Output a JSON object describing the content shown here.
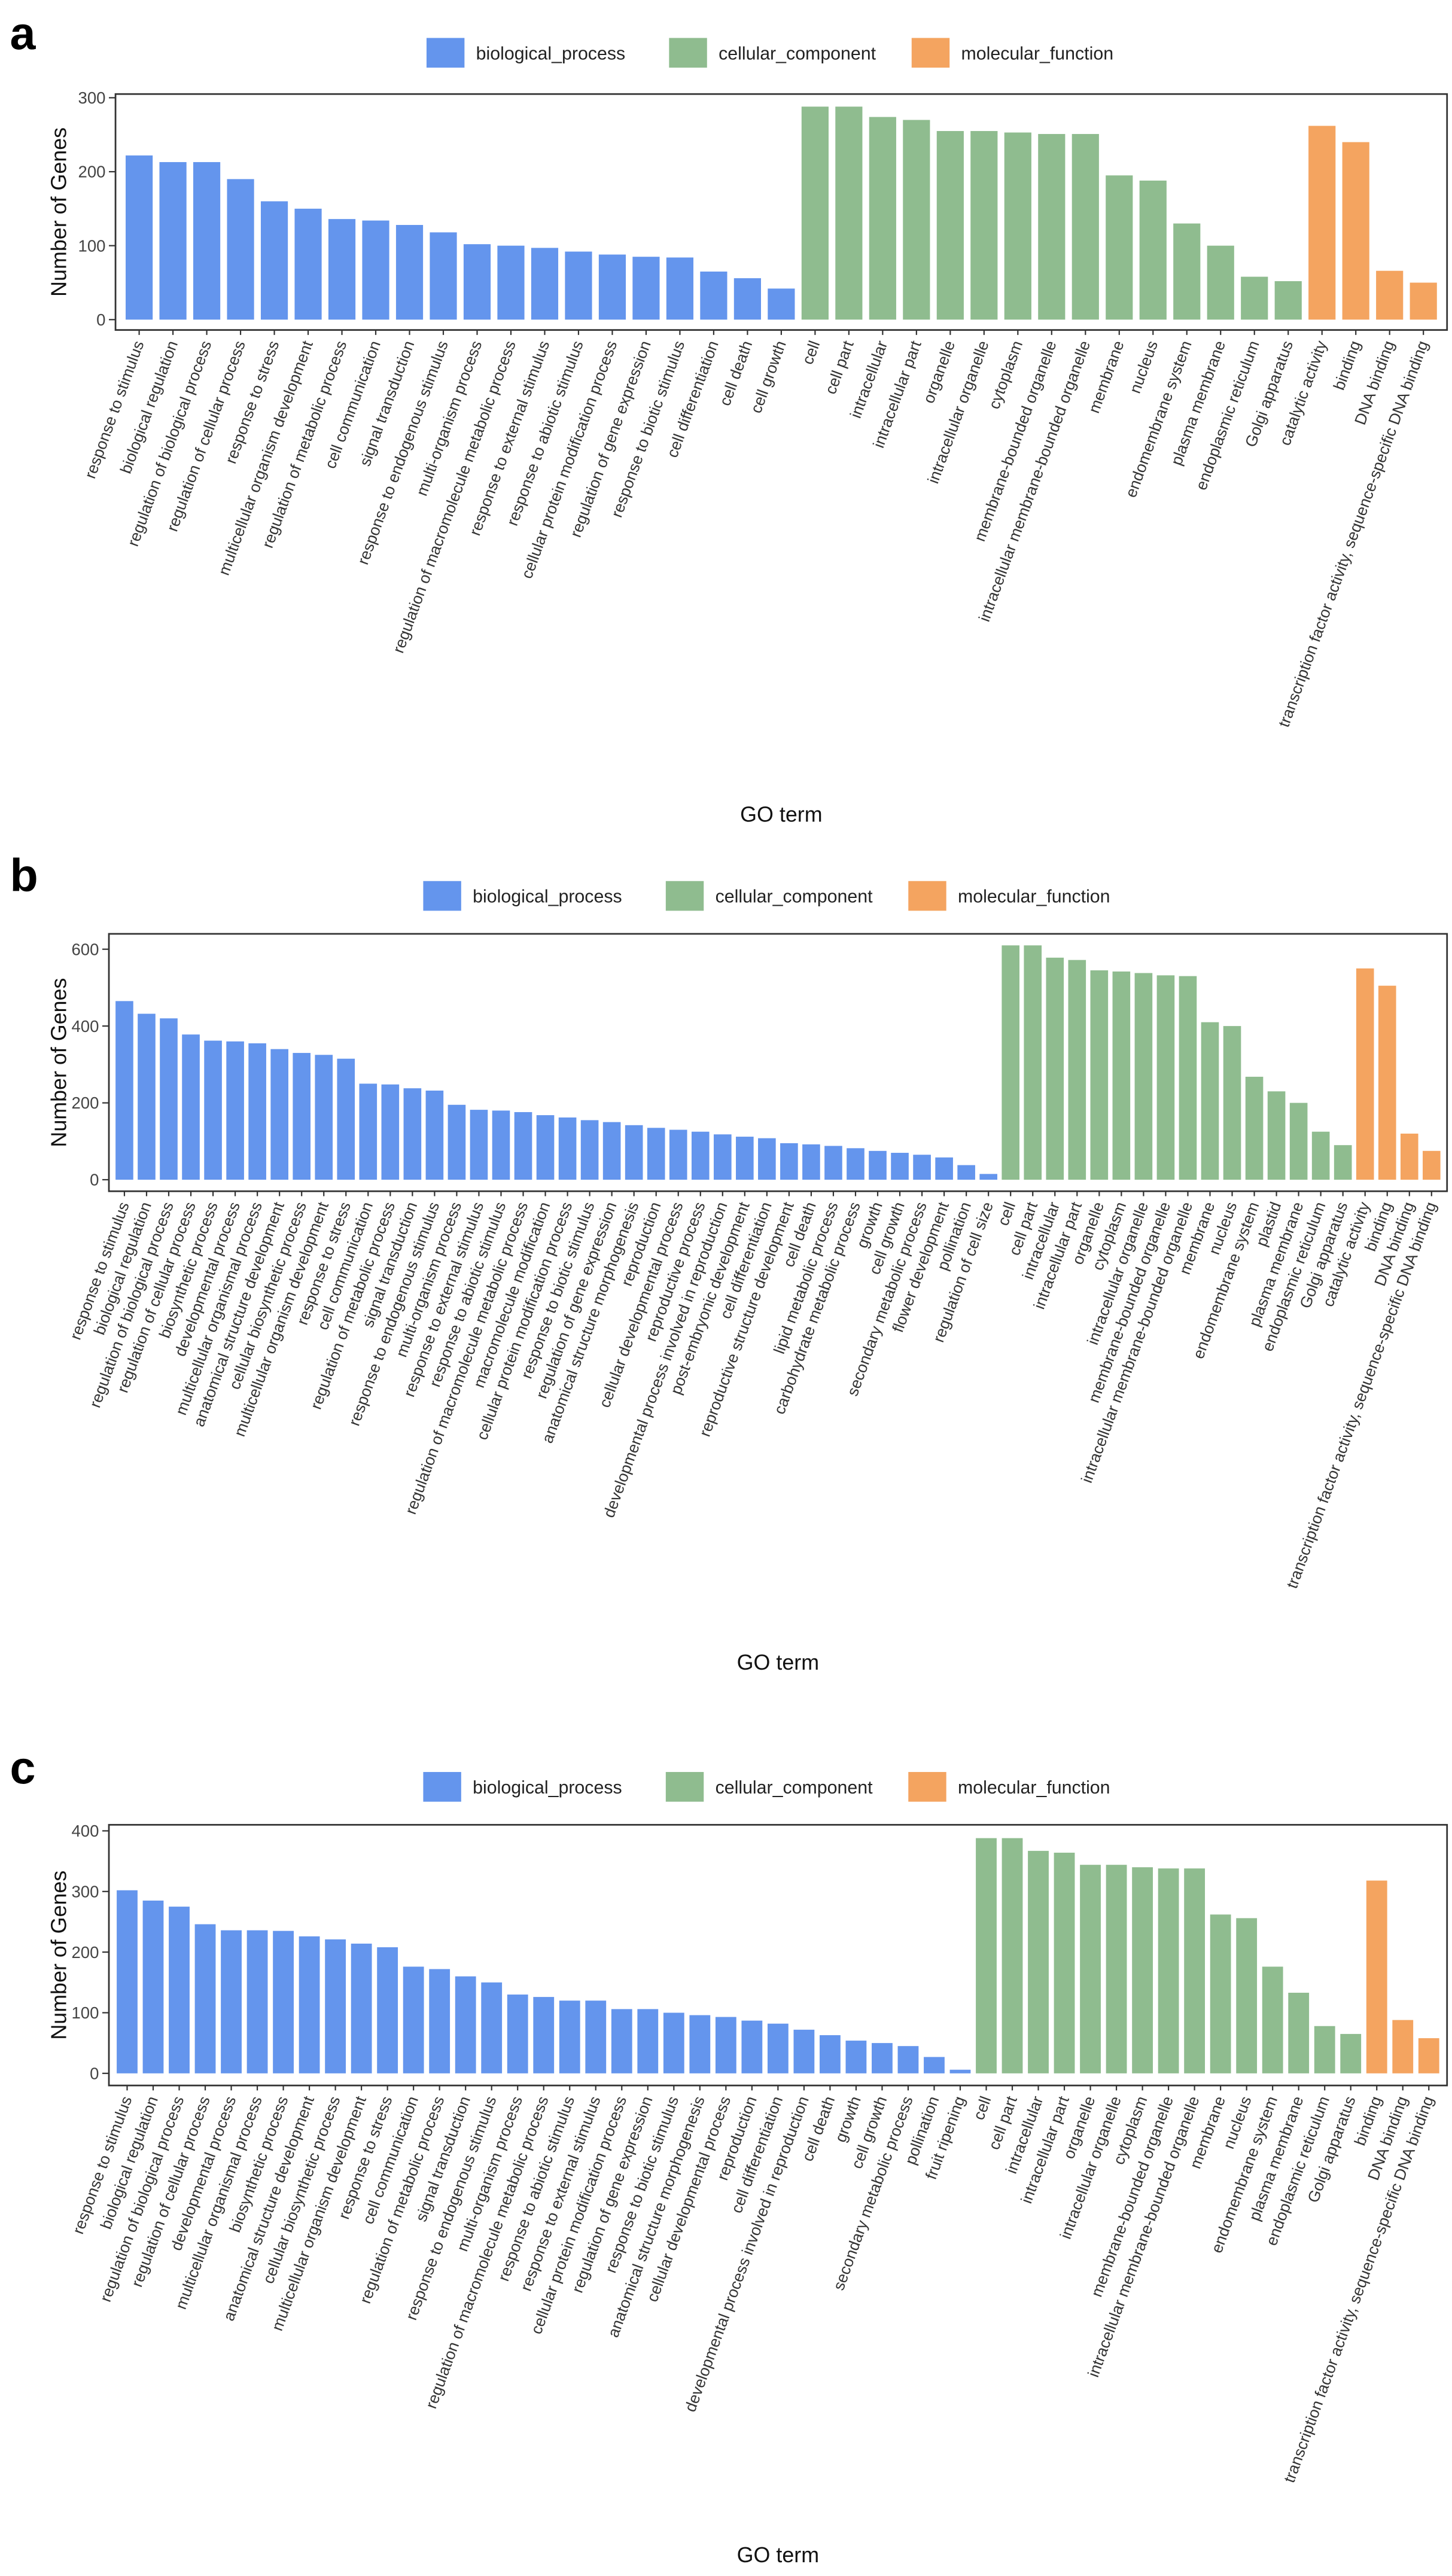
{
  "chart_data": [
    {
      "type": "bar",
      "panel_label": "a",
      "x_label": "GO term",
      "y_label": "Number of Genes",
      "ylim": [
        -14,
        305
      ],
      "yticks": [
        0,
        100,
        200,
        300
      ],
      "series": [
        {
          "name": "biological_process",
          "color": "#6495ed",
          "categories": [
            "response to stimulus",
            "biological regulation",
            "regulation of biological process",
            "regulation of cellular process",
            "response to stress",
            "multicellular organism development",
            "regulation of metabolic process",
            "cell communication",
            "signal transduction",
            "response to endogenous stimulus",
            "multi-organism process",
            "regulation of macromolecule metabolic process",
            "response to external stimulus",
            "response to abiotic stimulus",
            "cellular protein modification process",
            "regulation of gene expression",
            "response to biotic stimulus",
            "cell differentiation",
            "cell death",
            "cell growth"
          ],
          "values": [
            222,
            213,
            213,
            190,
            160,
            150,
            136,
            134,
            128,
            118,
            102,
            100,
            97,
            92,
            88,
            85,
            84,
            65,
            56,
            42
          ]
        },
        {
          "name": "cellular_component",
          "color": "#8fbc8f",
          "categories": [
            "cell",
            "cell part",
            "intracellular",
            "intracellular part",
            "organelle",
            "intracellular organelle",
            "cytoplasm",
            "membrane-bounded organelle",
            "intracellular membrane-bounded organelle",
            "membrane",
            "nucleus",
            "endomembrane system",
            "plasma membrane",
            "endoplasmic reticulum",
            "Golgi apparatus"
          ],
          "values": [
            288,
            288,
            274,
            270,
            255,
            255,
            253,
            251,
            251,
            195,
            188,
            130,
            100,
            58,
            52
          ]
        },
        {
          "name": "molecular_function",
          "color": "#f4a460",
          "categories": [
            "catalytic activity",
            "binding",
            "DNA binding",
            "transcription factor activity, sequence-specific DNA binding"
          ],
          "values": [
            262,
            240,
            66,
            50
          ]
        }
      ]
    },
    {
      "type": "bar",
      "panel_label": "b",
      "x_label": "GO term",
      "y_label": "Number of Genes",
      "ylim": [
        -30,
        640
      ],
      "yticks": [
        0,
        200,
        400,
        600
      ],
      "series": [
        {
          "name": "biological_process",
          "color": "#6495ed",
          "categories": [
            "response to stimulus",
            "biological regulation",
            "regulation of biological process",
            "regulation of cellular process",
            "biosynthetic process",
            "developmental process",
            "multicellular organismal process",
            "anatomical structure development",
            "cellular biosynthetic process",
            "multicellular organism development",
            "response to stress",
            "cell communication",
            "regulation of metabolic process",
            "signal transduction",
            "response to endogenous stimulus",
            "multi-organism process",
            "response to external stimulus",
            "response to abiotic stimulus",
            "regulation of macromolecule metabolic process",
            "macromolecule modification",
            "cellular protein modification process",
            "response to biotic stimulus",
            "regulation of gene expression",
            "anatomical structure morphogenesis",
            "reproduction",
            "cellular developmental process",
            "reproductive process",
            "developmental process involved in reproduction",
            "post-embryonic development",
            "cell differentiation",
            "reproductive structure development",
            "cell death",
            "lipid metabolic process",
            "carbohydrate metabolic process",
            "growth",
            "cell growth",
            "secondary metabolic process",
            "flower development",
            "pollination",
            "regulation of cell size"
          ],
          "values": [
            465,
            432,
            420,
            378,
            362,
            360,
            355,
            340,
            330,
            325,
            315,
            250,
            248,
            238,
            232,
            195,
            182,
            180,
            176,
            168,
            162,
            155,
            150,
            142,
            135,
            130,
            125,
            118,
            112,
            108,
            95,
            92,
            88,
            82,
            75,
            70,
            65,
            58,
            38,
            15
          ]
        },
        {
          "name": "cellular_component",
          "color": "#8fbc8f",
          "categories": [
            "cell",
            "cell part",
            "intracellular",
            "intracellular part",
            "organelle",
            "cytoplasm",
            "intracellular organelle",
            "membrane-bounded organelle",
            "intracellular membrane-bounded organelle",
            "membrane",
            "nucleus",
            "endomembrane system",
            "plastid",
            "plasma membrane",
            "endoplasmic reticulum",
            "Golgi apparatus"
          ],
          "values": [
            610,
            610,
            578,
            572,
            545,
            542,
            538,
            532,
            530,
            410,
            400,
            268,
            230,
            200,
            125,
            90
          ]
        },
        {
          "name": "molecular_function",
          "color": "#f4a460",
          "categories": [
            "catalytic activity",
            "binding",
            "DNA binding",
            "transcription factor activity, sequence-specific DNA binding"
          ],
          "values": [
            550,
            505,
            120,
            75
          ]
        }
      ]
    },
    {
      "type": "bar",
      "panel_label": "c",
      "x_label": "GO term",
      "y_label": "Number of Genes",
      "ylim": [
        -20,
        410
      ],
      "yticks": [
        0,
        100,
        200,
        300,
        400
      ],
      "series": [
        {
          "name": "biological_process",
          "color": "#6495ed",
          "categories": [
            "response to stimulus",
            "biological regulation",
            "regulation of biological process",
            "regulation of cellular process",
            "developmental process",
            "multicellular organismal process",
            "biosynthetic process",
            "anatomical structure development",
            "cellular biosynthetic process",
            "multicellular organism development",
            "response to stress",
            "cell communication",
            "regulation of metabolic process",
            "signal transduction",
            "response to endogenous stimulus",
            "multi-organism process",
            "regulation of macromolecule metabolic process",
            "response to abiotic stimulus",
            "response to external stimulus",
            "cellular protein modification process",
            "regulation of gene expression",
            "response to biotic stimulus",
            "anatomical structure morphogenesis",
            "cellular developmental process",
            "reproduction",
            "cell differentiation",
            "developmental process involved in reproduction",
            "cell death",
            "growth",
            "cell growth",
            "secondary metabolic process",
            "pollination",
            "fruit ripening"
          ],
          "values": [
            302,
            285,
            275,
            246,
            236,
            236,
            235,
            226,
            221,
            214,
            208,
            176,
            172,
            160,
            150,
            130,
            126,
            120,
            120,
            106,
            106,
            100,
            96,
            93,
            87,
            82,
            72,
            63,
            54,
            50,
            45,
            27,
            6
          ]
        },
        {
          "name": "cellular_component",
          "color": "#8fbc8f",
          "categories": [
            "cell",
            "cell part",
            "intracellular",
            "intracellular part",
            "organelle",
            "intracellular organelle",
            "cytoplasm",
            "membrane-bounded organelle",
            "intracellular membrane-bounded organelle",
            "membrane",
            "nucleus",
            "endomembrane system",
            "plasma membrane",
            "endoplasmic reticulum",
            "Golgi apparatus"
          ],
          "values": [
            388,
            388,
            367,
            364,
            344,
            344,
            340,
            338,
            338,
            262,
            256,
            176,
            133,
            78,
            65
          ]
        },
        {
          "name": "molecular_function",
          "color": "#f4a460",
          "categories": [
            "binding",
            "DNA binding",
            "transcription factor activity, sequence-specific DNA binding"
          ],
          "values": [
            318,
            88,
            58
          ]
        }
      ]
    }
  ]
}
